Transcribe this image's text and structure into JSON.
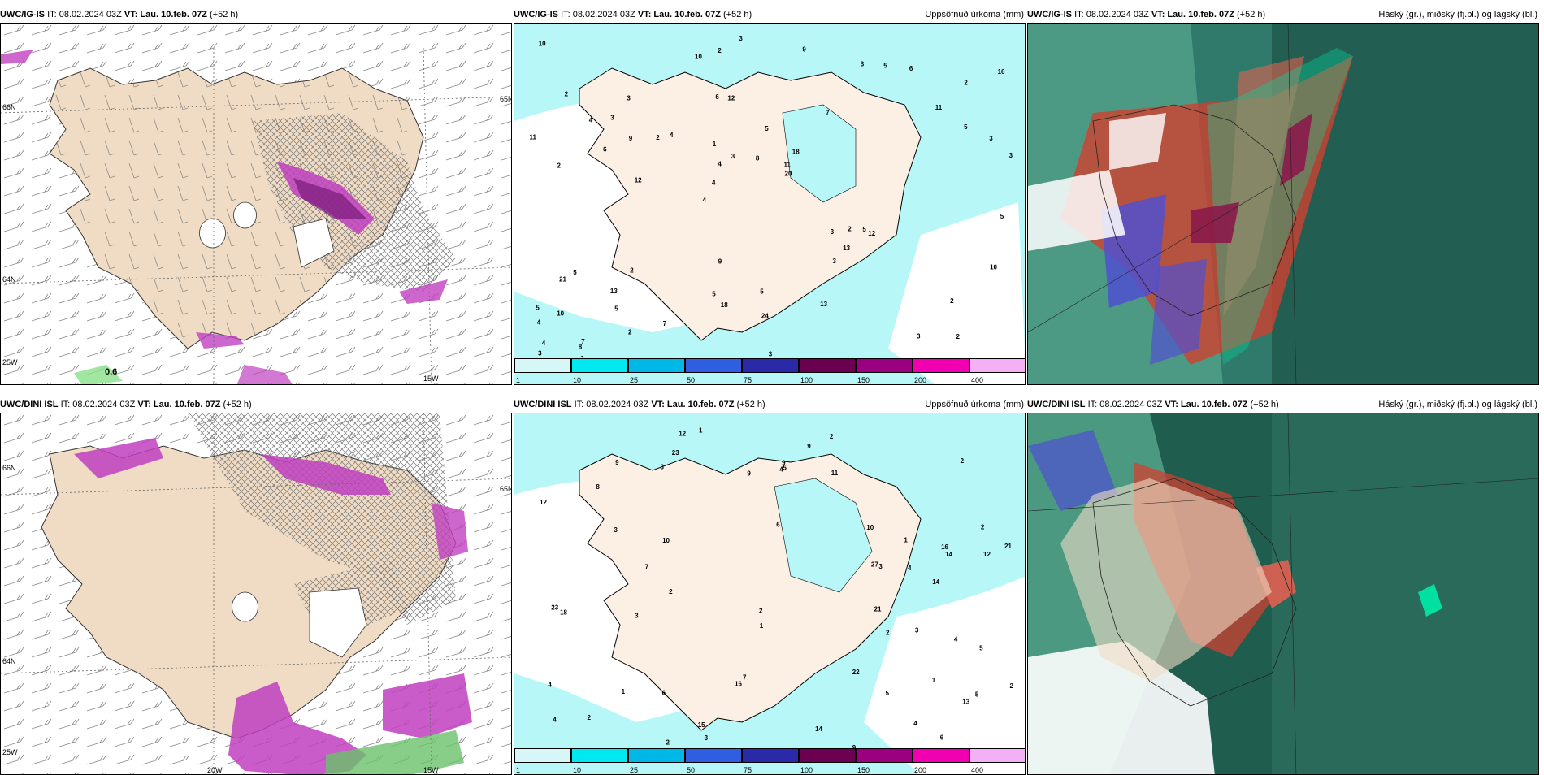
{
  "panels": [
    {
      "id": "p1",
      "model": "UWC/IG-IS",
      "it": "IT: 08.02.2024 03Z",
      "vt_label": "VT:",
      "vt": "Lau. 10.feb. 07Z",
      "lead": "(+52 h)",
      "right": "",
      "type": "wind"
    },
    {
      "id": "p2",
      "model": "UWC/IG-IS",
      "it": "IT: 08.02.2024 03Z",
      "vt_label": "VT:",
      "vt": "Lau. 10.feb. 07Z",
      "lead": "(+52 h)",
      "right": "Uppsöfnuð úrkoma (mm)",
      "type": "precip"
    },
    {
      "id": "p3",
      "model": "UWC/IG-IS",
      "it": "IT: 08.02.2024 03Z",
      "vt_label": "VT:",
      "vt": "Lau. 10.feb. 07Z",
      "lead": "(+52 h)",
      "right": "Háský (gr.), miðský (fj.bl.) og lágský (bl.)",
      "type": "cloud"
    },
    {
      "id": "p4",
      "model": "UWC/DINI ISL",
      "it": "IT: 08.02.2024 03Z",
      "vt_label": "VT:",
      "vt": "Lau. 10.feb. 07Z",
      "lead": "(+52 h)",
      "right": "",
      "type": "wind"
    },
    {
      "id": "p5",
      "model": "UWC/DINI ISL",
      "it": "IT: 08.02.2024 03Z",
      "vt_label": "VT:",
      "vt": "Lau. 10.feb. 07Z",
      "lead": "(+52 h)",
      "right": "Uppsöfnuð úrkoma (mm)",
      "type": "precip"
    },
    {
      "id": "p6",
      "model": "UWC/DINI ISL",
      "it": "IT: 08.02.2024 03Z",
      "vt_label": "VT:",
      "vt": "Lau. 10.feb. 07Z",
      "lead": "(+52 h)",
      "right": "Háský (gr.), miðský (fj.bl.) og lágský (bl.)",
      "type": "cloud"
    }
  ],
  "legend": {
    "levels": [
      "1",
      "10",
      "25",
      "50",
      "75",
      "100",
      "150",
      "200",
      "400"
    ],
    "colors": [
      "#d6f6f8",
      "#00e8f0",
      "#00b8e8",
      "#2f5fe0",
      "#2a2aa8",
      "#6a004f",
      "#9a0080",
      "#f000b0",
      "#f4b0f4"
    ]
  },
  "wind_labels_top": {
    "lat_66": "66N",
    "lat_64": "64N",
    "lat_65": "65N",
    "lon_25": "25W",
    "lon_15": "15W",
    "value_main": "0.6"
  },
  "wind_labels_bottom": {
    "lat_66": "66N",
    "lat_64": "64N",
    "lat_65": "65N",
    "lon_25": "25W",
    "lon_20": "20W",
    "lon_15": "15W"
  },
  "precip_values_top": [
    "2",
    "2",
    "2",
    "4",
    "7",
    "7",
    "6",
    "5",
    "5",
    "4",
    "4",
    "5",
    "12",
    "18",
    "12",
    "2",
    "2",
    "3",
    "3",
    "5",
    "4",
    "5",
    "4",
    "3",
    "3",
    "2",
    "3",
    "2",
    "5",
    "3",
    "2",
    "6",
    "3",
    "2",
    "3",
    "11",
    "4",
    "18",
    "20",
    "21",
    "11",
    "16",
    "13",
    "13",
    "13",
    "2",
    "3",
    "5",
    "6",
    "3",
    "12",
    "11",
    "3",
    "5",
    "8",
    "9",
    "10",
    "3",
    "10",
    "9",
    "7",
    "2",
    "9",
    "5",
    "10",
    "4",
    "5",
    "1",
    "24",
    "8",
    "10"
  ],
  "precip_values_bottom": [
    "1",
    "2",
    "5",
    "6",
    "4",
    "23",
    "16",
    "6",
    "2",
    "3",
    "12",
    "12",
    "14",
    "3",
    "4",
    "8",
    "13",
    "3",
    "7",
    "14",
    "23",
    "18",
    "14",
    "27",
    "15",
    "16",
    "9",
    "11",
    "10",
    "2",
    "3",
    "5",
    "2",
    "2",
    "4",
    "4",
    "3",
    "9",
    "6",
    "2",
    "3",
    "4",
    "4",
    "7",
    "5",
    "2",
    "2",
    "2",
    "10",
    "1",
    "1",
    "1",
    "5",
    "21",
    "22",
    "21",
    "12",
    "9",
    "9",
    "9",
    "1"
  ],
  "colors": {
    "land": "#f0dcc4",
    "sea_white": "#ffffff",
    "precip_land": "#fcefe3",
    "precip_cyan": "#b8f7f8",
    "purple": "#c040c0",
    "cloud_dark": "#1f5e4f",
    "cloud_mid": "#2f7a6a",
    "red": "#d04030",
    "blue": "#5050d0"
  }
}
